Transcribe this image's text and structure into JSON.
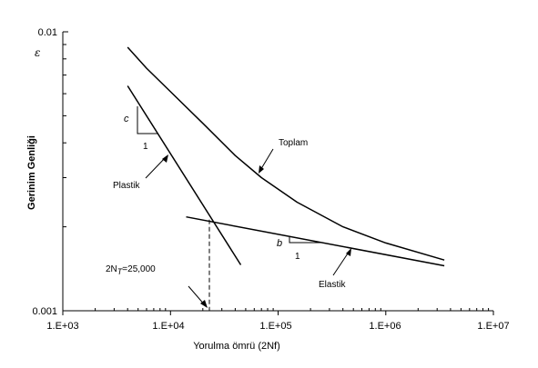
{
  "chart_data": {
    "type": "line",
    "xscale": "log",
    "yscale": "log",
    "xlim": [
      1000,
      10000000
    ],
    "ylim": [
      0.001,
      0.01
    ],
    "xticks": [
      "1.E+03",
      "1.E+04",
      "1.E+05",
      "1.E+06",
      "1.E+07"
    ],
    "yticks": [
      "0.01",
      "0.001"
    ],
    "xlabel": "Yorulma ömrü (2Nf)",
    "ylabel": "Gerinim Genliği",
    "y_symbol": "ε",
    "grid": false,
    "series": [
      {
        "name": "Toplam",
        "x": [
          4000,
          6000,
          10000,
          20000,
          40000,
          70000,
          150000,
          400000,
          1000000,
          3500000
        ],
        "y": [
          0.0088,
          0.0074,
          0.0061,
          0.0047,
          0.0036,
          0.003,
          0.00245,
          0.002,
          0.00175,
          0.00152
        ]
      },
      {
        "name": "Plastik",
        "x": [
          4000,
          45000
        ],
        "y": [
          0.0064,
          0.00146
        ]
      },
      {
        "name": "Elastik",
        "x": [
          14000,
          3500000
        ],
        "y": [
          0.00217,
          0.00145
        ]
      }
    ],
    "annotations": {
      "transition": {
        "label": "2N",
        "subscript": "T",
        "value_text": "=25,000",
        "x": 23000,
        "y": 0.00212
      },
      "plastic_slope": {
        "rise": "c",
        "run": "1"
      },
      "elastic_slope": {
        "rise": "b",
        "run": "1"
      }
    }
  }
}
